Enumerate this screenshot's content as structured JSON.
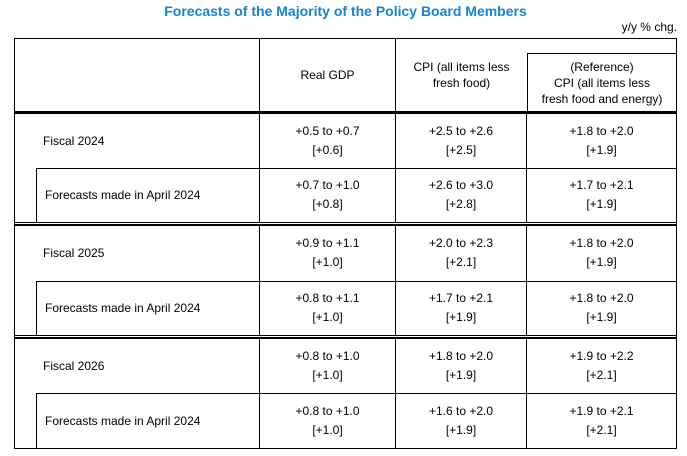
{
  "title": "Forecasts of the Majority of the Policy Board Members",
  "unit_note": "y/y % chg.",
  "colors": {
    "title": "#1583d5",
    "border": "#000000",
    "text": "#000000",
    "background": "#ffffff"
  },
  "table": {
    "header": {
      "empty": "",
      "gdp": "Real GDP",
      "cpi_line1": "CPI (all items less",
      "cpi_line2": "fresh food)",
      "ref_line1": "(Reference)",
      "ref_line2": "CPI (all items less",
      "ref_line3": "fresh food and energy)"
    },
    "groups": [
      {
        "main": {
          "label": "Fiscal 2024",
          "real_gdp": {
            "range": "+0.5 to +0.7",
            "median": "[+0.6]"
          },
          "cpi": {
            "range": "+2.5 to +2.6",
            "median": "[+2.5]"
          },
          "cpi_ex_energy": {
            "range": "+1.8 to +2.0",
            "median": "[+1.9]"
          }
        },
        "sub": {
          "label": "Forecasts made in April 2024",
          "real_gdp": {
            "range": "+0.7 to +1.0",
            "median": "[+0.8]"
          },
          "cpi": {
            "range": "+2.6 to +3.0",
            "median": "[+2.8]"
          },
          "cpi_ex_energy": {
            "range": "+1.7 to +2.1",
            "median": "[+1.9]"
          }
        }
      },
      {
        "main": {
          "label": "Fiscal 2025",
          "real_gdp": {
            "range": "+0.9 to +1.1",
            "median": "[+1.0]"
          },
          "cpi": {
            "range": "+2.0 to +2.3",
            "median": "[+2.1]"
          },
          "cpi_ex_energy": {
            "range": "+1.8 to +2.0",
            "median": "[+1.9]"
          }
        },
        "sub": {
          "label": "Forecasts made in April 2024",
          "real_gdp": {
            "range": "+0.8 to +1.1",
            "median": "[+1.0]"
          },
          "cpi": {
            "range": "+1.7 to +2.1",
            "median": "[+1.9]"
          },
          "cpi_ex_energy": {
            "range": "+1.8 to +2.0",
            "median": "[+1.9]"
          }
        }
      },
      {
        "main": {
          "label": "Fiscal 2026",
          "real_gdp": {
            "range": "+0.8 to +1.0",
            "median": "[+1.0]"
          },
          "cpi": {
            "range": "+1.8 to +2.0",
            "median": "[+1.9]"
          },
          "cpi_ex_energy": {
            "range": "+1.9 to +2.2",
            "median": "[+2.1]"
          }
        },
        "sub": {
          "label": "Forecasts made in April 2024",
          "real_gdp": {
            "range": "+0.8 to +1.0",
            "median": "[+1.0]"
          },
          "cpi": {
            "range": "+1.6 to +2.0",
            "median": "[+1.9]"
          },
          "cpi_ex_energy": {
            "range": "+1.9 to +2.1",
            "median": "[+2.1]"
          }
        }
      }
    ]
  },
  "chart_data": {
    "type": "table",
    "title": "Forecasts of the Majority of the Policy Board Members",
    "unit": "y/y % chg.",
    "columns": [
      "",
      "Real GDP",
      "CPI (all items less fresh food)",
      "(Reference) CPI (all items less fresh food and energy)"
    ],
    "rows": [
      [
        "Fiscal 2024",
        "+0.5 to +0.7 [+0.6]",
        "+2.5 to +2.6 [+2.5]",
        "+1.8 to +2.0 [+1.9]"
      ],
      [
        "Forecasts made in April 2024",
        "+0.7 to +1.0 [+0.8]",
        "+2.6 to +3.0 [+2.8]",
        "+1.7 to +2.1 [+1.9]"
      ],
      [
        "Fiscal 2025",
        "+0.9 to +1.1 [+1.0]",
        "+2.0 to +2.3 [+2.1]",
        "+1.8 to +2.0 [+1.9]"
      ],
      [
        "Forecasts made in April 2024",
        "+0.8 to +1.1 [+1.0]",
        "+1.7 to +2.1 [+1.9]",
        "+1.8 to +2.0 [+1.9]"
      ],
      [
        "Fiscal 2026",
        "+0.8 to +1.0 [+1.0]",
        "+1.8 to +2.0 [+1.9]",
        "+1.9 to +2.2 [+2.1]"
      ],
      [
        "Forecasts made in April 2024",
        "+0.8 to +1.0 [+1.0]",
        "+1.6 to +2.0 [+1.9]",
        "+1.9 to +2.1 [+2.1]"
      ]
    ]
  }
}
